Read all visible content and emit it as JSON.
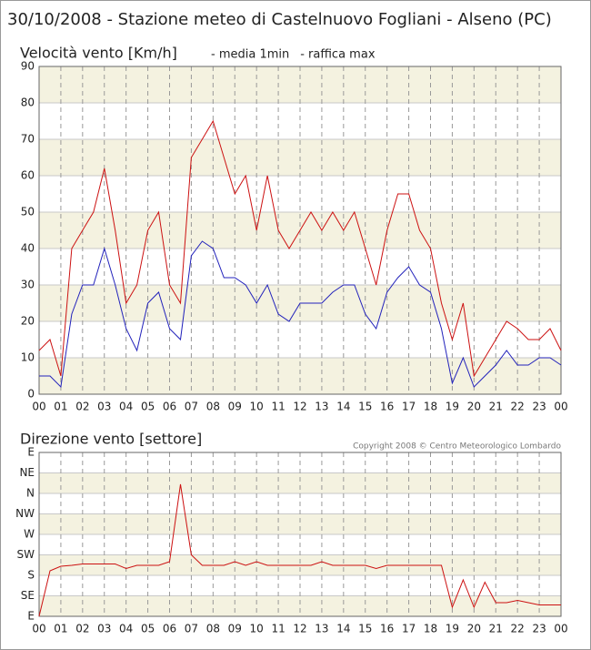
{
  "chart_data": [
    {
      "type": "line",
      "title": "30/10/2008 - Stazione meteo di Castelnuovo Fogliani - Alseno (PC)",
      "subtitle": "Velocità vento [Km/h]",
      "x": [
        0,
        0.5,
        1,
        1.5,
        2,
        2.5,
        3,
        3.5,
        4,
        4.5,
        5,
        5.5,
        6,
        6.5,
        7,
        7.5,
        8,
        8.5,
        9,
        9.5,
        10,
        10.5,
        11,
        11.5,
        12,
        12.5,
        13,
        13.5,
        14,
        14.5,
        15,
        15.5,
        16,
        16.5,
        17,
        17.5,
        18,
        18.5,
        19,
        19.5,
        20,
        20.5,
        21,
        21.5,
        22,
        22.5,
        23,
        23.5,
        24
      ],
      "series": [
        {
          "name": "- media 1min",
          "color": "#2222bb",
          "values": [
            5,
            5,
            2,
            22,
            30,
            30,
            40,
            30,
            18,
            12,
            25,
            28,
            18,
            15,
            38,
            42,
            40,
            32,
            32,
            30,
            25,
            30,
            22,
            20,
            25,
            25,
            25,
            28,
            30,
            30,
            22,
            18,
            28,
            32,
            35,
            30,
            28,
            18,
            3,
            10,
            2,
            5,
            8,
            12,
            8,
            8,
            10,
            10,
            8
          ]
        },
        {
          "name": "- raffica max",
          "color": "#cc1111",
          "values": [
            12,
            15,
            5,
            40,
            45,
            50,
            62,
            45,
            25,
            30,
            45,
            50,
            30,
            25,
            65,
            70,
            75,
            65,
            55,
            60,
            45,
            60,
            45,
            40,
            45,
            50,
            45,
            50,
            45,
            50,
            40,
            30,
            45,
            55,
            55,
            45,
            40,
            25,
            15,
            25,
            5,
            10,
            15,
            20,
            18,
            15,
            15,
            18,
            12
          ]
        }
      ],
      "xlim": [
        0,
        24
      ],
      "xticks": [
        {
          "value": 0,
          "label": "00"
        },
        {
          "value": 1,
          "label": "01"
        },
        {
          "value": 2,
          "label": "02"
        },
        {
          "value": 3,
          "label": "03"
        },
        {
          "value": 4,
          "label": "04"
        },
        {
          "value": 5,
          "label": "05"
        },
        {
          "value": 6,
          "label": "06"
        },
        {
          "value": 7,
          "label": "07"
        },
        {
          "value": 8,
          "label": "08"
        },
        {
          "value": 9,
          "label": "09"
        },
        {
          "value": 10,
          "label": "10"
        },
        {
          "value": 11,
          "label": "11"
        },
        {
          "value": 12,
          "label": "12"
        },
        {
          "value": 13,
          "label": "13"
        },
        {
          "value": 14,
          "label": "14"
        },
        {
          "value": 15,
          "label": "15"
        },
        {
          "value": 16,
          "label": "16"
        },
        {
          "value": 17,
          "label": "17"
        },
        {
          "value": 18,
          "label": "18"
        },
        {
          "value": 19,
          "label": "19"
        },
        {
          "value": 20,
          "label": "20"
        },
        {
          "value": 21,
          "label": "21"
        },
        {
          "value": 22,
          "label": "22"
        },
        {
          "value": 23,
          "label": "23"
        },
        {
          "value": 24,
          "label": "00"
        }
      ],
      "ylim": [
        0,
        90
      ],
      "yticks": [
        0,
        10,
        20,
        30,
        40,
        50,
        60,
        70,
        80,
        90
      ],
      "grid": true
    },
    {
      "type": "line",
      "subtitle": "Direzione vento [settore]",
      "annotation": "Copyright 2008 © Centro Meteorologico Lombardo",
      "x": [
        0,
        0.5,
        1,
        1.5,
        2,
        2.5,
        3,
        3.5,
        4,
        4.5,
        5,
        5.5,
        6,
        6.5,
        7,
        7.5,
        8,
        8.5,
        9,
        9.5,
        10,
        10.5,
        11,
        11.5,
        12,
        12.5,
        13,
        13.5,
        14,
        14.5,
        15,
        15.5,
        16,
        16.5,
        17,
        17.5,
        18,
        18.5,
        19,
        19.5,
        20,
        20.5,
        21,
        21.5,
        22,
        22.5,
        23,
        23.5,
        24
      ],
      "series": [
        {
          "color": "#cc1111",
          "values": [
            90,
            190,
            200,
            202,
            205,
            205,
            205,
            205,
            195,
            202,
            202,
            202,
            210,
            380,
            225,
            202,
            202,
            202,
            210,
            202,
            210,
            202,
            202,
            202,
            202,
            202,
            210,
            202,
            202,
            202,
            202,
            195,
            202,
            202,
            202,
            202,
            202,
            202,
            110,
            170,
            110,
            165,
            120,
            120,
            125,
            120,
            115,
            115,
            115
          ]
        }
      ],
      "xlim": [
        0,
        24
      ],
      "xticks": [
        {
          "value": 0,
          "label": "00"
        },
        {
          "value": 1,
          "label": "01"
        },
        {
          "value": 2,
          "label": "02"
        },
        {
          "value": 3,
          "label": "03"
        },
        {
          "value": 4,
          "label": "04"
        },
        {
          "value": 5,
          "label": "05"
        },
        {
          "value": 6,
          "label": "06"
        },
        {
          "value": 7,
          "label": "07"
        },
        {
          "value": 8,
          "label": "08"
        },
        {
          "value": 9,
          "label": "09"
        },
        {
          "value": 10,
          "label": "10"
        },
        {
          "value": 11,
          "label": "11"
        },
        {
          "value": 12,
          "label": "12"
        },
        {
          "value": 13,
          "label": "13"
        },
        {
          "value": 14,
          "label": "14"
        },
        {
          "value": 15,
          "label": "15"
        },
        {
          "value": 16,
          "label": "16"
        },
        {
          "value": 17,
          "label": "17"
        },
        {
          "value": 18,
          "label": "18"
        },
        {
          "value": 19,
          "label": "19"
        },
        {
          "value": 20,
          "label": "20"
        },
        {
          "value": 21,
          "label": "21"
        },
        {
          "value": 22,
          "label": "22"
        },
        {
          "value": 23,
          "label": "23"
        },
        {
          "value": 24,
          "label": "00"
        }
      ],
      "ylim": [
        90,
        450
      ],
      "yticks": [
        {
          "value": 90,
          "label": "E"
        },
        {
          "value": 135,
          "label": "SE"
        },
        {
          "value": 180,
          "label": "S"
        },
        {
          "value": 225,
          "label": "SW"
        },
        {
          "value": 270,
          "label": "W"
        },
        {
          "value": 315,
          "label": "NW"
        },
        {
          "value": 360,
          "label": "N"
        },
        {
          "value": 405,
          "label": "NE"
        },
        {
          "value": 450,
          "label": "E"
        }
      ],
      "grid": true
    }
  ]
}
